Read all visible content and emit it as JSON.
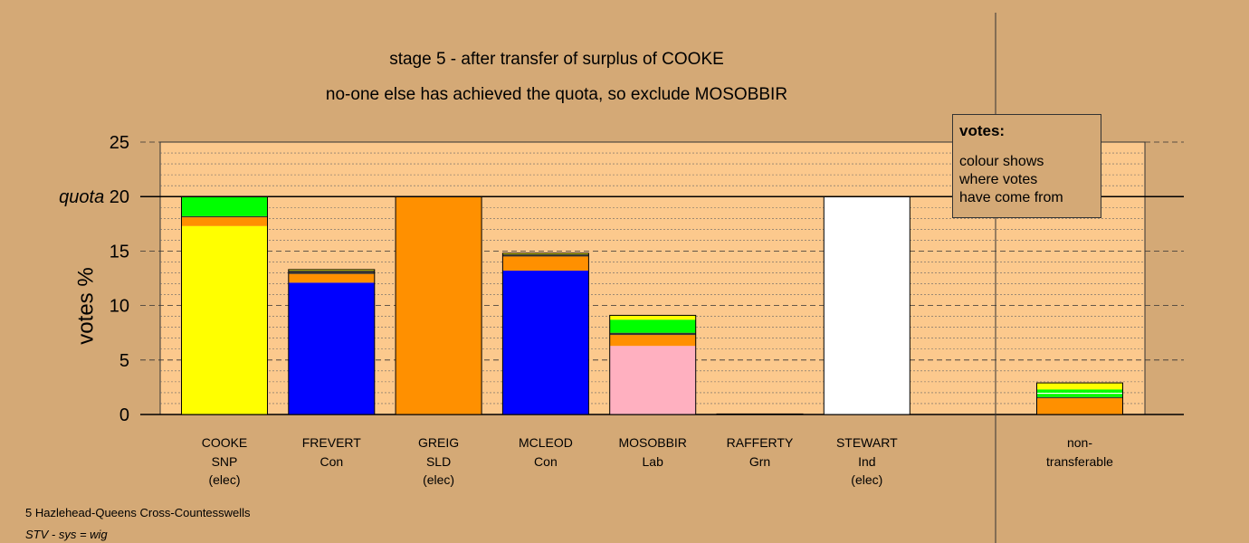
{
  "titles": {
    "line1": "stage 5 - after transfer of surplus of COOKE",
    "line2": "no-one else has achieved the quota, so exclude MOSOBBIR"
  },
  "legend": {
    "title": "votes:",
    "lines": [
      "colour shows",
      "where votes",
      "have come from"
    ]
  },
  "footer": {
    "ward": "5 Hazlehead-Queens Cross-Countesswells",
    "system": "STV - sys = wig"
  },
  "colors": {
    "background": "#d4a976",
    "plot_background": "#fcc98d",
    "SNP": "#ffff00",
    "Con": "#0000ff",
    "SLD": "#ff9000",
    "Lab": "#ffb0c0",
    "Grn": "#00ff00",
    "Ind": "#ffffff",
    "dark": "#333333"
  },
  "chart_data": {
    "type": "bar",
    "stacked": true,
    "ylabel": "votes %",
    "ylim": [
      0,
      25
    ],
    "yticks": [
      0,
      5,
      10,
      15,
      20,
      25
    ],
    "quota": 20,
    "quota_label": "quota",
    "grid": "dashed",
    "categories": [
      {
        "name": "COOKE",
        "party": "SNP",
        "note": "(elec)"
      },
      {
        "name": "FREVERT",
        "party": "Con",
        "note": ""
      },
      {
        "name": "GREIG",
        "party": "SLD",
        "note": "(elec)"
      },
      {
        "name": "MCLEOD",
        "party": "Con",
        "note": ""
      },
      {
        "name": "MOSOBBIR",
        "party": "Lab",
        "note": ""
      },
      {
        "name": "RAFFERTY",
        "party": "Grn",
        "note": ""
      },
      {
        "name": "STEWART",
        "party": "Ind",
        "note": "(elec)"
      }
    ],
    "segments": [
      [
        {
          "from": "SNP",
          "value": 17.3
        },
        {
          "from": "SLD",
          "value": 0.8
        },
        {
          "from": "dark",
          "value": 0.1
        },
        {
          "from": "Grn",
          "value": 1.8
        }
      ],
      [
        {
          "from": "Con",
          "value": 12.1
        },
        {
          "from": "SLD",
          "value": 0.8
        },
        {
          "from": "dark",
          "value": 0.3
        },
        {
          "from": "SNP",
          "value": 0.1
        }
      ],
      [
        {
          "from": "SLD",
          "value": 20.0
        }
      ],
      [
        {
          "from": "Con",
          "value": 13.2
        },
        {
          "from": "SLD",
          "value": 1.3
        },
        {
          "from": "dark",
          "value": 0.2
        },
        {
          "from": "SNP",
          "value": 0.1
        }
      ],
      [
        {
          "from": "Lab",
          "value": 6.3
        },
        {
          "from": "SLD",
          "value": 1.0
        },
        {
          "from": "dark",
          "value": 0.2
        },
        {
          "from": "Grn",
          "value": 1.2
        },
        {
          "from": "SNP",
          "value": 0.4
        }
      ],
      [
        {
          "from": "Grn",
          "value": 0.05
        }
      ],
      [
        {
          "from": "Ind",
          "value": 20.0
        }
      ]
    ],
    "non_transferable": {
      "label_line1": "non-",
      "label_line2": "transferable",
      "segments": [
        {
          "from": "SLD",
          "value": 1.5
        },
        {
          "from": "dark",
          "value": 0.1
        },
        {
          "from": "Grn",
          "value": 0.3
        },
        {
          "from": "Ind",
          "value": 0.1
        },
        {
          "from": "Grn",
          "value": 0.3
        },
        {
          "from": "SNP",
          "value": 0.6
        }
      ]
    }
  }
}
